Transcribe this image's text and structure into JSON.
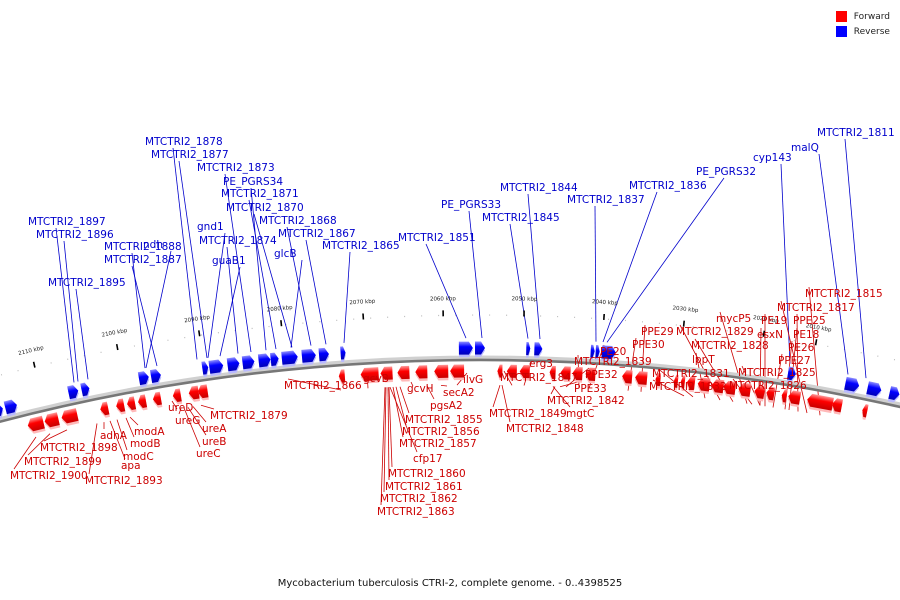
{
  "caption": "Mycobacterium tuberculosis CTRI-2, complete genome. - 0..4398525",
  "legend": [
    {
      "label": "Forward",
      "color": "#ff0000"
    },
    {
      "label": "Reverse",
      "color": "#0000ff"
    }
  ],
  "ticks": [
    "2010 kbp",
    "2020 kbp",
    "2030 kbp",
    "2040 kbp",
    "2050 kbp",
    "2060 kbp",
    "2070 kbp",
    "2080 kbp",
    "2090 kbp",
    "2100 kbp",
    "2110 kbp"
  ],
  "reverse_labels": [
    "MTCTRI2_1811",
    "malQ",
    "cyp143",
    "PE_PGRS32",
    "MTCTRI2_1836",
    "MTCTRI2_1837",
    "MTCTRI2_1844",
    "MTCTRI2_1845",
    "PE_PGRS33",
    "MTCTRI2_1851",
    "MTCTRI2_1865",
    "MTCTRI2_1867",
    "MTCTRI2_1868",
    "MTCTRI2_1870",
    "MTCTRI2_1871",
    "PE_PGRS34",
    "MTCTRI2_1873",
    "MTCTRI2_1874",
    "glcB",
    "guaB1",
    "gnd1",
    "MTCTRI2_1877",
    "MTCTRI2_1878",
    "MTCTRI2_1887",
    "ndh",
    "MTCTRI2_1888",
    "MTCTRI2_1895",
    "MTCTRI2_1896",
    "MTCTRI2_1897"
  ],
  "forward_labels": [
    "MTCTRI2_1815",
    "MTCTRI2_1817",
    "PPE25",
    "PE18",
    "PE26",
    "PPE27",
    "MTCTRI2_1825",
    "MTCTRI2_1826",
    "PE19",
    "esxN",
    "mycP5",
    "MTCTRI2_1828",
    "MTCTRI2_1829",
    "lppT",
    "MTCTRI2_1831",
    "MTCTRI2_1832",
    "PPE29",
    "PPE30",
    "PE20",
    "MTCTRI2_1839",
    "PPE32",
    "PPE33",
    "MTCTRI2_1842",
    "mgtC",
    "erg3",
    "MTCTRI2_1847",
    "MTCTRI2_1849",
    "MTCTRI2_1848",
    "ilvG",
    "secA2",
    "pgsA2",
    "gcvH",
    "MTCTRI2_1855",
    "MTCTRI2_1856",
    "MTCTRI2_1857",
    "cfp17",
    "MTCTRI2_1860",
    "MTCTRI2_1861",
    "MTCTRI2_1862",
    "MTCTRI2_1863",
    "gcvB",
    "MTCTRI2_1866",
    "MTCTRI2_1879",
    "ureA",
    "ureB",
    "ureC",
    "ureG",
    "ureD",
    "modA",
    "modB",
    "modC",
    "adhA",
    "apa",
    "MTCTRI2_1893",
    "MTCTRI2_1898",
    "MTCTRI2_1899",
    "MTCTRI2_1900"
  ]
}
